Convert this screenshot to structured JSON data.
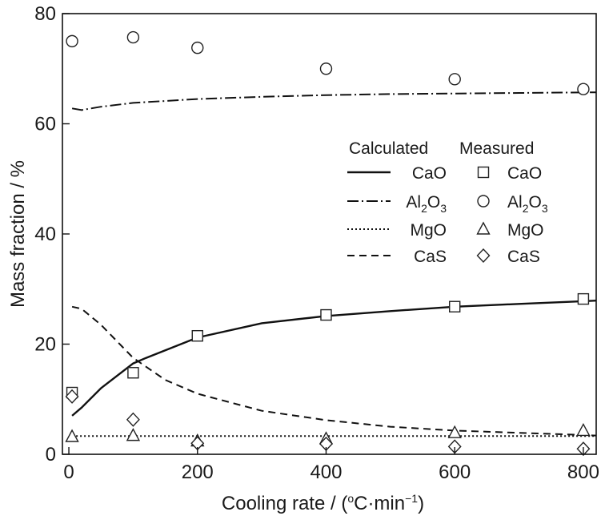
{
  "chart_data": {
    "type": "line",
    "xlabel": "Cooling rate / (°C·min⁻¹)",
    "xlabel_parts": {
      "prefix": "Cooling rate / (",
      "sup_o": "o",
      "mid": "C·min",
      "sup_exp": "−1",
      "suffix": ")"
    },
    "ylabel": "Mass fraction / %",
    "xlim": [
      -10,
      820
    ],
    "ylim": [
      0,
      80
    ],
    "xticks": [
      0,
      200,
      400,
      600,
      800
    ],
    "yticks": [
      0,
      20,
      40,
      60,
      80
    ],
    "grid": false,
    "legend": {
      "placement": "right-middle",
      "header_calculated": "Calculated",
      "header_measured": "Measured",
      "entries": [
        {
          "label": "CaO",
          "sub": "",
          "line_style": "solid",
          "marker": "square"
        },
        {
          "label": "Al",
          "sub": "2",
          "label_mid": "O",
          "sub2": "3",
          "line_style": "dashdot",
          "marker": "circle"
        },
        {
          "label": "MgO",
          "sub": "",
          "line_style": "dotted",
          "marker": "triangle"
        },
        {
          "label": "CaS",
          "sub": "",
          "line_style": "dashed",
          "marker": "diamond"
        }
      ]
    },
    "calculated": [
      {
        "name": "CaO",
        "style": "solid",
        "x": [
          5,
          20,
          50,
          100,
          120,
          200,
          300,
          400,
          500,
          600,
          700,
          800,
          820
        ],
        "y": [
          7,
          8.5,
          12,
          16.5,
          17.5,
          21.2,
          23.8,
          25.1,
          26.0,
          26.8,
          27.3,
          27.8,
          27.9
        ]
      },
      {
        "name": "Al2O3",
        "style": "dashdot",
        "x": [
          5,
          20,
          50,
          100,
          200,
          300,
          400,
          500,
          600,
          700,
          800,
          820
        ],
        "y": [
          62.8,
          62.5,
          63.1,
          63.8,
          64.5,
          64.9,
          65.2,
          65.4,
          65.5,
          65.6,
          65.7,
          65.7
        ]
      },
      {
        "name": "MgO",
        "style": "dotted",
        "x": [
          5,
          100,
          200,
          400,
          600,
          800,
          820
        ],
        "y": [
          3.3,
          3.3,
          3.3,
          3.3,
          3.3,
          3.3,
          3.3
        ]
      },
      {
        "name": "CaS",
        "style": "dashed",
        "x": [
          5,
          20,
          50,
          100,
          150,
          200,
          300,
          400,
          500,
          600,
          700,
          800,
          820
        ],
        "y": [
          26.8,
          26.4,
          23.5,
          17.5,
          13.5,
          11.0,
          7.9,
          6.2,
          5.0,
          4.3,
          3.9,
          3.5,
          3.4
        ]
      }
    ],
    "measured": [
      {
        "name": "CaO",
        "marker": "square",
        "x": [
          5,
          100,
          200,
          400,
          600,
          800
        ],
        "y": [
          11.2,
          14.8,
          21.5,
          25.3,
          26.8,
          28.2
        ]
      },
      {
        "name": "Al2O3",
        "marker": "circle",
        "x": [
          5,
          100,
          200,
          400,
          600,
          800
        ],
        "y": [
          75.0,
          75.7,
          73.8,
          70.0,
          68.1,
          66.3
        ]
      },
      {
        "name": "MgO",
        "marker": "triangle",
        "x": [
          5,
          100,
          200,
          400,
          600,
          800
        ],
        "y": [
          3.2,
          3.4,
          2.4,
          2.8,
          3.9,
          4.3
        ]
      },
      {
        "name": "CaS",
        "marker": "diamond",
        "x": [
          5,
          100,
          200,
          400,
          600,
          800
        ],
        "y": [
          10.5,
          6.3,
          2.0,
          1.9,
          1.4,
          1.0
        ]
      }
    ]
  }
}
